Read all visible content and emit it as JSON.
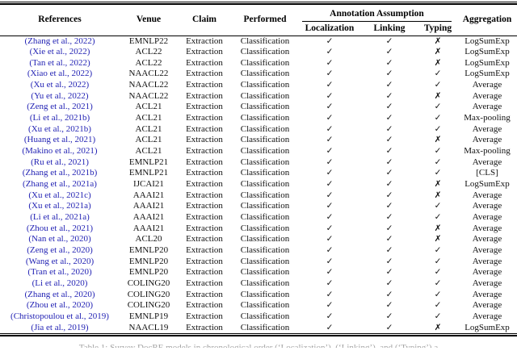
{
  "table": {
    "header": {
      "references": "References",
      "venue": "Venue",
      "claim": "Claim",
      "performed": "Performed",
      "annotation_assumption": "Annotation Assumption",
      "localization": "Localization",
      "linking": "Linking",
      "typing": "Typing",
      "aggregation": "Aggregation"
    },
    "symbols": {
      "check": "✓",
      "cross": "✗"
    },
    "link_color": "#2323b4",
    "rows": [
      {
        "reference": "(Zhang et al., 2022)",
        "venue": "EMNLP22",
        "claim": "Extraction",
        "performed": "Classification",
        "localization": true,
        "linking": true,
        "typing": false,
        "aggregation": "LogSumExp"
      },
      {
        "reference": "(Xie et al., 2022)",
        "venue": "ACL22",
        "claim": "Extraction",
        "performed": "Classification",
        "localization": true,
        "linking": true,
        "typing": false,
        "aggregation": "LogSumExp"
      },
      {
        "reference": "(Tan et al., 2022)",
        "venue": "ACL22",
        "claim": "Extraction",
        "performed": "Classification",
        "localization": true,
        "linking": true,
        "typing": false,
        "aggregation": "LogSumExp"
      },
      {
        "reference": "(Xiao et al., 2022)",
        "venue": "NAACL22",
        "claim": "Extraction",
        "performed": "Classification",
        "localization": true,
        "linking": true,
        "typing": true,
        "aggregation": "LogSumExp"
      },
      {
        "reference": "(Xu et al., 2022)",
        "venue": "NAACL22",
        "claim": "Extraction",
        "performed": "Classification",
        "localization": true,
        "linking": true,
        "typing": true,
        "aggregation": "Average"
      },
      {
        "reference": "(Yu et al., 2022)",
        "venue": "NAACL22",
        "claim": "Extraction",
        "performed": "Classification",
        "localization": true,
        "linking": true,
        "typing": false,
        "aggregation": "Average"
      },
      {
        "reference": "(Zeng et al., 2021)",
        "venue": "ACL21",
        "claim": "Extraction",
        "performed": "Classification",
        "localization": true,
        "linking": true,
        "typing": true,
        "aggregation": "Average"
      },
      {
        "reference": "(Li et al., 2021b)",
        "venue": "ACL21",
        "claim": "Extraction",
        "performed": "Classification",
        "localization": true,
        "linking": true,
        "typing": true,
        "aggregation": "Max-pooling"
      },
      {
        "reference": "(Xu et al., 2021b)",
        "venue": "ACL21",
        "claim": "Extraction",
        "performed": "Classification",
        "localization": true,
        "linking": true,
        "typing": true,
        "aggregation": "Average"
      },
      {
        "reference": "(Huang et al., 2021)",
        "venue": "ACL21",
        "claim": "Extraction",
        "performed": "Classification",
        "localization": true,
        "linking": true,
        "typing": false,
        "aggregation": "Average"
      },
      {
        "reference": "(Makino et al., 2021)",
        "venue": "ACL21",
        "claim": "Extraction",
        "performed": "Classification",
        "localization": true,
        "linking": true,
        "typing": true,
        "aggregation": "Max-pooling"
      },
      {
        "reference": "(Ru et al., 2021)",
        "venue": "EMNLP21",
        "claim": "Extraction",
        "performed": "Classification",
        "localization": true,
        "linking": true,
        "typing": true,
        "aggregation": "Average"
      },
      {
        "reference": "(Zhang et al., 2021b)",
        "venue": "EMNLP21",
        "claim": "Extraction",
        "performed": "Classification",
        "localization": true,
        "linking": true,
        "typing": true,
        "aggregation": "[CLS]"
      },
      {
        "reference": "(Zhang et al., 2021a)",
        "venue": "IJCAI21",
        "claim": "Extraction",
        "performed": "Classification",
        "localization": true,
        "linking": true,
        "typing": false,
        "aggregation": "LogSumExp"
      },
      {
        "reference": "(Xu et al., 2021c)",
        "venue": "AAAI21",
        "claim": "Extraction",
        "performed": "Classification",
        "localization": true,
        "linking": true,
        "typing": false,
        "aggregation": "Average"
      },
      {
        "reference": "(Xu et al., 2021a)",
        "venue": "AAAI21",
        "claim": "Extraction",
        "performed": "Classification",
        "localization": true,
        "linking": true,
        "typing": true,
        "aggregation": "Average"
      },
      {
        "reference": "(Li et al., 2021a)",
        "venue": "AAAI21",
        "claim": "Extraction",
        "performed": "Classification",
        "localization": true,
        "linking": true,
        "typing": true,
        "aggregation": "Average"
      },
      {
        "reference": "(Zhou et al., 2021)",
        "venue": "AAAI21",
        "claim": "Extraction",
        "performed": "Classification",
        "localization": true,
        "linking": true,
        "typing": false,
        "aggregation": "Average"
      },
      {
        "reference": "(Nan et al., 2020)",
        "venue": "ACL20",
        "claim": "Extraction",
        "performed": "Classification",
        "localization": true,
        "linking": true,
        "typing": false,
        "aggregation": "Average"
      },
      {
        "reference": "(Zeng et al., 2020)",
        "venue": "EMNLP20",
        "claim": "Extraction",
        "performed": "Classification",
        "localization": true,
        "linking": true,
        "typing": true,
        "aggregation": "Average"
      },
      {
        "reference": "(Wang et al., 2020)",
        "venue": "EMNLP20",
        "claim": "Extraction",
        "performed": "Classification",
        "localization": true,
        "linking": true,
        "typing": true,
        "aggregation": "Average"
      },
      {
        "reference": "(Tran et al., 2020)",
        "venue": "EMNLP20",
        "claim": "Extraction",
        "performed": "Classification",
        "localization": true,
        "linking": true,
        "typing": true,
        "aggregation": "Average"
      },
      {
        "reference": "(Li et al., 2020)",
        "venue": "COLING20",
        "claim": "Extraction",
        "performed": "Classification",
        "localization": true,
        "linking": true,
        "typing": true,
        "aggregation": "Average"
      },
      {
        "reference": "(Zhang et al., 2020)",
        "venue": "COLING20",
        "claim": "Extraction",
        "performed": "Classification",
        "localization": true,
        "linking": true,
        "typing": true,
        "aggregation": "Average"
      },
      {
        "reference": "(Zhou et al., 2020)",
        "venue": "COLING20",
        "claim": "Extraction",
        "performed": "Classification",
        "localization": true,
        "linking": true,
        "typing": true,
        "aggregation": "Average"
      },
      {
        "reference": "(Christopoulou et al., 2019)",
        "venue": "EMNLP19",
        "claim": "Extraction",
        "performed": "Classification",
        "localization": true,
        "linking": true,
        "typing": true,
        "aggregation": "Average"
      },
      {
        "reference": "(Jia et al., 2019)",
        "venue": "NAACL19",
        "claim": "Extraction",
        "performed": "Classification",
        "localization": true,
        "linking": true,
        "typing": false,
        "aggregation": "LogSumExp"
      }
    ]
  },
  "caption_partial": "Table 1: Survey DocRE models in chronological order (‘Localization’), (‘Linking’), and (‘Typing’) a"
}
